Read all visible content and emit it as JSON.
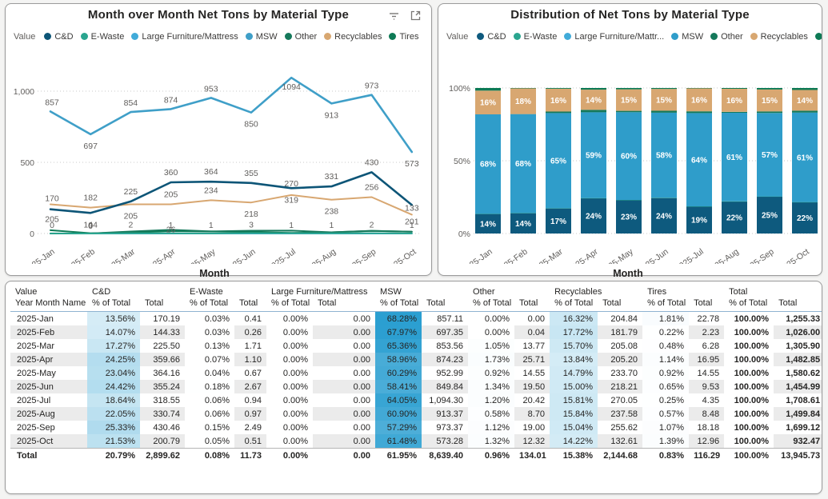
{
  "line_card": {
    "title": "Month over Month Net Tons by Material Type",
    "legend_title": "Value",
    "x_axis_title": "Month"
  },
  "bar_card": {
    "title": "Distribution of Net Tons by Material Type",
    "legend_title": "Value",
    "x_axis_title": "Month"
  },
  "chart_data": [
    {
      "type": "line",
      "title": "Month over Month Net Tons by Material Type",
      "xlabel": "Month",
      "ylabel": "Value",
      "ylim": [
        0,
        1150
      ],
      "grid": "dotted-horizontal",
      "legend_position": "top",
      "categories": [
        "2025-Jan",
        "2025-Feb",
        "2025-Mar",
        "2025-Apr",
        "2025-May",
        "2025-Jun",
        "2025-Jul",
        "2025-Aug",
        "2025-Sep",
        "2025-Oct"
      ],
      "y_ticks": [
        {
          "value": 0,
          "label": "0"
        },
        {
          "value": 500,
          "label": "500"
        },
        {
          "value": 1000,
          "label": "1,000"
        }
      ],
      "draw_order": [
        2,
        6,
        4,
        1,
        5,
        0,
        3
      ],
      "series": [
        {
          "name": "C&D",
          "color": "#0d5577",
          "values": [
            170.19,
            144.33,
            225.5,
            359.66,
            364.16,
            355.24,
            318.55,
            330.74,
            430.46,
            200.79
          ],
          "labels": [
            "170",
            "144",
            "225",
            "360",
            "364",
            "355",
            "319",
            "331",
            "430",
            "201"
          ],
          "label_dy": [
            -10,
            16,
            -9,
            -9,
            -9,
            -9,
            16,
            -9,
            -9,
            22
          ]
        },
        {
          "name": "E-Waste",
          "color": "#2aa58f",
          "values": [
            0.41,
            0.26,
            1.71,
            1.1,
            0.67,
            2.67,
            0.94,
            0.97,
            2.49,
            0.51
          ],
          "labels": [
            "0",
            "0",
            "2",
            "1",
            "1",
            "3",
            "1",
            "1",
            "2",
            "1"
          ],
          "label_dy": [
            -7,
            -7,
            -7,
            -7,
            -7,
            -7,
            -7,
            -7,
            -7,
            -7
          ]
        },
        {
          "name": "Large Furniture/Mattress",
          "color": "#41abd9",
          "values": [
            0,
            0,
            0,
            0,
            0,
            0,
            0,
            0,
            0,
            0
          ],
          "labels": [
            null,
            null,
            null,
            null,
            null,
            null,
            null,
            null,
            null,
            null
          ],
          "label_dy": []
        },
        {
          "name": "MSW",
          "color": "#3f9fc8",
          "values": [
            857.11,
            697.35,
            853.56,
            874.23,
            952.99,
            849.84,
            1094.3,
            913.37,
            973.37,
            573.28
          ],
          "labels": [
            "857",
            "697",
            "854",
            "874",
            "953",
            "850",
            "1094",
            "913",
            "973",
            "573"
          ],
          "label_dy": [
            -8,
            16,
            -8,
            -8,
            -8,
            16,
            13,
            16,
            -8,
            16
          ]
        },
        {
          "name": "Other",
          "color": "#15795b",
          "values": [
            0.0,
            0.04,
            13.77,
            25.71,
            14.55,
            19.5,
            20.42,
            8.7,
            19.0,
            12.32
          ],
          "labels": [
            null,
            "0",
            null,
            "26",
            null,
            null,
            null,
            null,
            null,
            null
          ],
          "label_dy": [
            0,
            -6,
            0,
            1,
            0,
            0,
            0,
            0,
            0,
            0
          ]
        },
        {
          "name": "Recyclables",
          "color": "#d8a771",
          "values": [
            204.84,
            181.79,
            205.08,
            205.2,
            233.7,
            218.21,
            270.05,
            237.58,
            255.62,
            132.61
          ],
          "labels": [
            "205",
            "182",
            "205",
            "205",
            "234",
            "218",
            "270",
            "238",
            "256",
            "133"
          ],
          "label_dy": [
            20,
            -9,
            16,
            -9,
            -9,
            16,
            -11,
            16,
            -9,
            -5
          ]
        },
        {
          "name": "Tires",
          "color": "#0d7a55",
          "values": [
            22.78,
            2.23,
            6.28,
            16.95,
            14.55,
            9.53,
            4.35,
            8.48,
            18.18,
            12.96
          ],
          "labels": [
            null,
            null,
            null,
            null,
            null,
            null,
            null,
            null,
            null,
            null
          ],
          "label_dy": []
        }
      ]
    },
    {
      "type": "stacked-bar-100",
      "title": "Distribution of Net Tons by Material Type",
      "xlabel": "Month",
      "ylabel": "Value",
      "ylim": [
        0,
        100
      ],
      "grid": "dotted-horizontal",
      "legend_position": "top",
      "legend_truncated_names": {
        "Large Furniture/Mattress": "Large Furniture/Mattr..."
      },
      "categories": [
        "2025-Jan",
        "2025-Feb",
        "2025-Mar",
        "2025-Apr",
        "2025-May",
        "2025-Jun",
        "2025-Jul",
        "2025-Aug",
        "2025-Sep",
        "2025-Oct"
      ],
      "y_ticks": [
        {
          "value": 0,
          "label": "0%"
        },
        {
          "value": 50,
          "label": "50%"
        },
        {
          "value": 100,
          "label": "100%"
        }
      ],
      "series": [
        {
          "name": "C&D",
          "color": "#0e5a7e",
          "values": [
            13.56,
            14.07,
            17.27,
            24.25,
            23.04,
            24.42,
            18.64,
            22.05,
            25.33,
            21.53
          ],
          "labels": [
            "14%",
            "14%",
            "17%",
            "24%",
            "23%",
            "24%",
            "19%",
            "22%",
            "25%",
            "22%"
          ]
        },
        {
          "name": "E-Waste",
          "color": "#2aa58f",
          "values": [
            0.03,
            0.03,
            0.13,
            0.07,
            0.04,
            0.18,
            0.06,
            0.06,
            0.15,
            0.05
          ],
          "labels": []
        },
        {
          "name": "Large Furniture/Mattress",
          "color": "#41abd9",
          "values": [
            0,
            0,
            0,
            0,
            0,
            0,
            0,
            0,
            0,
            0
          ],
          "labels": []
        },
        {
          "name": "MSW",
          "color": "#2f9dca",
          "values": [
            68.28,
            67.97,
            65.36,
            58.96,
            60.29,
            58.41,
            64.05,
            60.9,
            57.29,
            61.48
          ],
          "labels": [
            "68%",
            "68%",
            "65%",
            "59%",
            "60%",
            "58%",
            "64%",
            "61%",
            "57%",
            "61%"
          ]
        },
        {
          "name": "Other",
          "color": "#15795b",
          "values": [
            0.0,
            0.0,
            1.05,
            1.73,
            0.92,
            1.34,
            1.2,
            0.58,
            1.12,
            1.32
          ],
          "labels": []
        },
        {
          "name": "Recyclables",
          "color": "#d8a771",
          "values": [
            16.32,
            17.72,
            15.7,
            13.84,
            14.79,
            15.0,
            15.81,
            15.84,
            15.04,
            14.22
          ],
          "labels": [
            "16%",
            "18%",
            "16%",
            "14%",
            "15%",
            "15%",
            "16%",
            "16%",
            "15%",
            "14%"
          ]
        },
        {
          "name": "Tires",
          "color": "#0d7a55",
          "values": [
            1.81,
            0.22,
            0.48,
            1.14,
            0.92,
            0.65,
            0.25,
            0.57,
            1.07,
            1.39
          ],
          "labels": []
        }
      ]
    }
  ],
  "table": {
    "corner": {
      "line1": "Value",
      "line2": "Year Month Name"
    },
    "groups": [
      "C&D",
      "E-Waste",
      "Large Furniture/Mattress",
      "MSW",
      "Other",
      "Recyclables",
      "Tires",
      "Total"
    ],
    "sub_headers": [
      "% of Total",
      "Total"
    ],
    "rows": [
      {
        "label": "2025-Jan",
        "cells": [
          "13.56%",
          "170.19",
          "0.03%",
          "0.41",
          "0.00%",
          "0.00",
          "68.28%",
          "857.11",
          "0.00%",
          "0.00",
          "16.32%",
          "204.84",
          "1.81%",
          "22.78",
          "100.00%",
          "1,255.33"
        ]
      },
      {
        "label": "2025-Feb",
        "cells": [
          "14.07%",
          "144.33",
          "0.03%",
          "0.26",
          "0.00%",
          "0.00",
          "67.97%",
          "697.35",
          "0.00%",
          "0.04",
          "17.72%",
          "181.79",
          "0.22%",
          "2.23",
          "100.00%",
          "1,026.00"
        ]
      },
      {
        "label": "2025-Mar",
        "cells": [
          "17.27%",
          "225.50",
          "0.13%",
          "1.71",
          "0.00%",
          "0.00",
          "65.36%",
          "853.56",
          "1.05%",
          "13.77",
          "15.70%",
          "205.08",
          "0.48%",
          "6.28",
          "100.00%",
          "1,305.90"
        ]
      },
      {
        "label": "2025-Apr",
        "cells": [
          "24.25%",
          "359.66",
          "0.07%",
          "1.10",
          "0.00%",
          "0.00",
          "58.96%",
          "874.23",
          "1.73%",
          "25.71",
          "13.84%",
          "205.20",
          "1.14%",
          "16.95",
          "100.00%",
          "1,482.85"
        ]
      },
      {
        "label": "2025-May",
        "cells": [
          "23.04%",
          "364.16",
          "0.04%",
          "0.67",
          "0.00%",
          "0.00",
          "60.29%",
          "952.99",
          "0.92%",
          "14.55",
          "14.79%",
          "233.70",
          "0.92%",
          "14.55",
          "100.00%",
          "1,580.62"
        ]
      },
      {
        "label": "2025-Jun",
        "cells": [
          "24.42%",
          "355.24",
          "0.18%",
          "2.67",
          "0.00%",
          "0.00",
          "58.41%",
          "849.84",
          "1.34%",
          "19.50",
          "15.00%",
          "218.21",
          "0.65%",
          "9.53",
          "100.00%",
          "1,454.99"
        ]
      },
      {
        "label": "2025-Jul",
        "cells": [
          "18.64%",
          "318.55",
          "0.06%",
          "0.94",
          "0.00%",
          "0.00",
          "64.05%",
          "1,094.30",
          "1.20%",
          "20.42",
          "15.81%",
          "270.05",
          "0.25%",
          "4.35",
          "100.00%",
          "1,708.61"
        ]
      },
      {
        "label": "2025-Aug",
        "cells": [
          "22.05%",
          "330.74",
          "0.06%",
          "0.97",
          "0.00%",
          "0.00",
          "60.90%",
          "913.37",
          "0.58%",
          "8.70",
          "15.84%",
          "237.58",
          "0.57%",
          "8.48",
          "100.00%",
          "1,499.84"
        ]
      },
      {
        "label": "2025-Sep",
        "cells": [
          "25.33%",
          "430.46",
          "0.15%",
          "2.49",
          "0.00%",
          "0.00",
          "57.29%",
          "973.37",
          "1.12%",
          "19.00",
          "15.04%",
          "255.62",
          "1.07%",
          "18.18",
          "100.00%",
          "1,699.12"
        ]
      },
      {
        "label": "2025-Oct",
        "cells": [
          "21.53%",
          "200.79",
          "0.05%",
          "0.51",
          "0.00%",
          "0.00",
          "61.48%",
          "573.28",
          "1.32%",
          "12.32",
          "14.22%",
          "132.61",
          "1.39%",
          "12.96",
          "100.00%",
          "932.47"
        ]
      }
    ],
    "total_row": {
      "label": "Total",
      "cells": [
        "20.79%",
        "2,899.62",
        "0.08%",
        "11.73",
        "0.00%",
        "0.00",
        "61.95%",
        "8,639.40",
        "0.96%",
        "134.01",
        "15.38%",
        "2,144.68",
        "0.83%",
        "116.29",
        "100.00%",
        "13,945.73"
      ]
    },
    "format": {
      "heat_max_pct": 68.28,
      "heat_color": "#2b9fd1",
      "stripe_color": "#ebebeb"
    }
  }
}
